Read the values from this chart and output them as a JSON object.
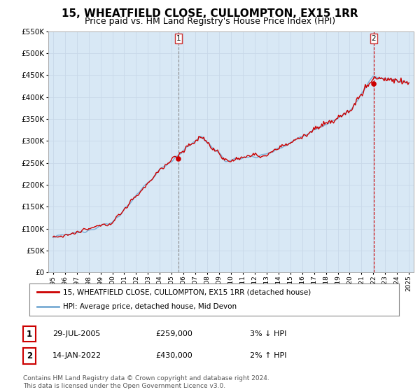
{
  "title": "15, WHEATFIELD CLOSE, CULLOMPTON, EX15 1RR",
  "subtitle": "Price paid vs. HM Land Registry's House Price Index (HPI)",
  "legend_line1": "15, WHEATFIELD CLOSE, CULLOMPTON, EX15 1RR (detached house)",
  "legend_line2": "HPI: Average price, detached house, Mid Devon",
  "footnote": "Contains HM Land Registry data © Crown copyright and database right 2024.\nThis data is licensed under the Open Government Licence v3.0.",
  "table_rows": [
    {
      "num": "1",
      "date": "29-JUL-2005",
      "price": "£259,000",
      "hpi": "3% ↓ HPI"
    },
    {
      "num": "2",
      "date": "14-JAN-2022",
      "price": "£430,000",
      "hpi": "2% ↑ HPI"
    }
  ],
  "marker1_x": 2005.57,
  "marker1_y": 259000,
  "marker2_x": 2022.04,
  "marker2_y": 430000,
  "price_color": "#cc0000",
  "hpi_color": "#7aadd4",
  "marker_color": "#cc0000",
  "bg_fill_color": "#d8e8f5",
  "ylim": [
    0,
    550000
  ],
  "yticks": [
    0,
    50000,
    100000,
    150000,
    200000,
    250000,
    300000,
    350000,
    400000,
    450000,
    500000,
    550000
  ],
  "xlim_start": 1994.6,
  "xlim_end": 2025.4,
  "background_color": "#ffffff",
  "grid_color": "#c8d8e8",
  "title_fontsize": 11,
  "subtitle_fontsize": 9
}
